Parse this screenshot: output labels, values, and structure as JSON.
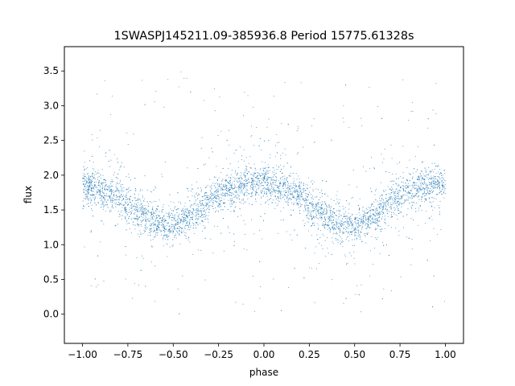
{
  "chart_data": {
    "type": "scatter",
    "title": "1SWASPJ145211.09-385936.8 Period 15775.61328s",
    "xlabel": "phase",
    "ylabel": "flux",
    "xlim": [
      -1.1,
      1.1
    ],
    "ylim": [
      -0.42,
      3.85
    ],
    "xticks": [
      -1.0,
      -0.75,
      -0.5,
      -0.25,
      0.0,
      0.25,
      0.5,
      0.75,
      1.0
    ],
    "xtick_labels": [
      "−1.00",
      "−0.75",
      "−0.50",
      "−0.25",
      "0.00",
      "0.25",
      "0.50",
      "0.75",
      "1.00"
    ],
    "yticks": [
      0.0,
      0.5,
      1.0,
      1.5,
      2.0,
      2.5,
      3.0,
      3.5
    ],
    "ytick_labels": [
      "0.0",
      "0.5",
      "1.0",
      "1.5",
      "2.0",
      "2.5",
      "3.0",
      "3.5"
    ],
    "grid": false,
    "marker_color": "#1f77b4",
    "series": [
      {
        "x": [
          -1.0,
          -0.9,
          -0.8,
          -0.7,
          -0.6,
          -0.5,
          -0.4,
          -0.3,
          -0.2,
          -0.1,
          0.0,
          0.1,
          0.2,
          0.3,
          0.4,
          0.5,
          0.6,
          0.7,
          0.8,
          0.9,
          1.0
        ],
        "y": [
          1.85,
          1.8,
          1.68,
          1.5,
          1.32,
          1.25,
          1.42,
          1.65,
          1.8,
          1.88,
          1.88,
          1.82,
          1.7,
          1.5,
          1.3,
          1.25,
          1.4,
          1.62,
          1.78,
          1.84,
          1.85
        ],
        "spread_core": 0.13,
        "scatter_range": [
          0.0,
          3.6
        ]
      }
    ]
  }
}
